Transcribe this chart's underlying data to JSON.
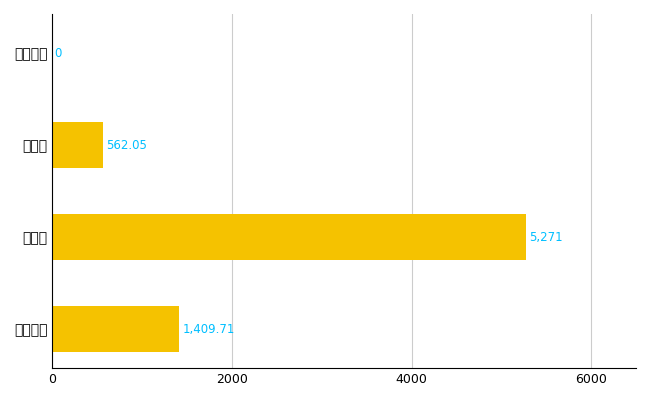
{
  "categories": [
    "下北山村",
    "県平均",
    "県最大",
    "全国平均"
  ],
  "values": [
    0,
    562.05,
    5271,
    1409.71
  ],
  "bar_color": "#F5C200",
  "value_color": "#00BFFF",
  "value_labels": [
    "0",
    "562.05",
    "5,271",
    "1,409.71"
  ],
  "xlim": [
    0,
    6500
  ],
  "xticks": [
    0,
    2000,
    4000,
    6000
  ],
  "background_color": "#ffffff",
  "grid_color": "#cccccc",
  "bar_height": 0.5
}
